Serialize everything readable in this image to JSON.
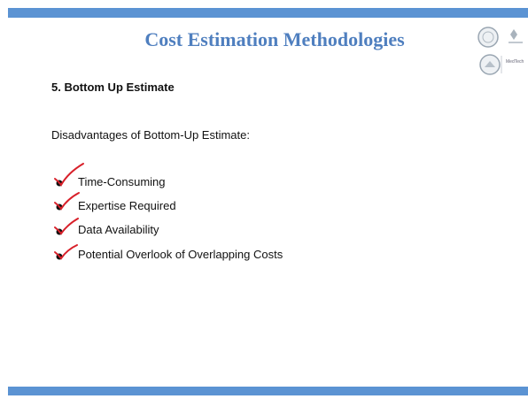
{
  "header": {
    "title": "Cost Estimation Methodologies",
    "logo_text": "MedTech"
  },
  "section": {
    "heading": "5. Bottom Up Estimate",
    "intro": "Disadvantages of Bottom-Up Estimate:",
    "items": [
      "Time-Consuming",
      "Expertise Required",
      "Data Availability",
      "Potential Overlook of Overlapping Costs"
    ]
  }
}
